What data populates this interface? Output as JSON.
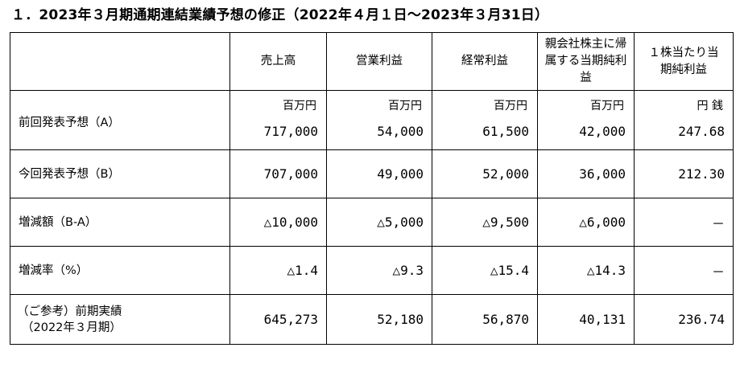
{
  "title": "１．2023年３月期通期連結業績予想の修正（2022年４月１日～2023年３月31日）",
  "table": {
    "headers": [
      "売上高",
      "営業利益",
      "経常利益",
      "親会社株主に帰属する当期純利益",
      "１株当たり当期純利益"
    ],
    "units": [
      "百万円",
      "百万円",
      "百万円",
      "百万円",
      "円 銭"
    ],
    "rows": [
      {
        "label": "前回発表予想（A）",
        "values": [
          "717,000",
          "54,000",
          "61,500",
          "42,000",
          "247.68"
        ]
      },
      {
        "label": "今回発表予想（B）",
        "values": [
          "707,000",
          "49,000",
          "52,000",
          "36,000",
          "212.30"
        ]
      },
      {
        "label": "増減額（B-A）",
        "values": [
          "△10,000",
          "△5,000",
          "△9,500",
          "△6,000",
          "－"
        ]
      },
      {
        "label": "増減率（%）",
        "values": [
          "△1.4",
          "△9.3",
          "△15.4",
          "△14.3",
          "－"
        ]
      },
      {
        "label_line1": "（ご参考）前期実績",
        "label_line2": "（2022年３月期）",
        "values": [
          "645,273",
          "52,180",
          "56,870",
          "40,131",
          "236.74"
        ]
      }
    ]
  }
}
